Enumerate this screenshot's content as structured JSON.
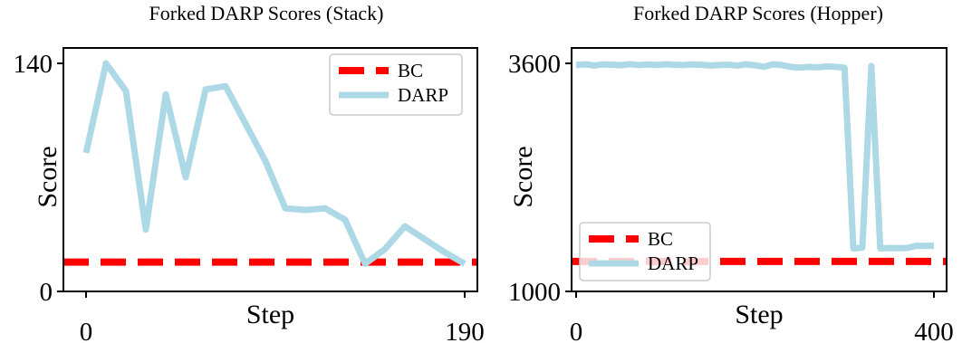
{
  "colors": {
    "bc": "#ff0000",
    "darp": "#add8e6"
  },
  "chart_data": [
    {
      "type": "line",
      "title": "Forked DARP Scores (Stack)",
      "xlabel": "Step",
      "ylabel": "Score",
      "xlim": [
        0,
        190
      ],
      "ylim": [
        0,
        140
      ],
      "xticks": [
        0,
        190
      ],
      "yticks": [
        0,
        140
      ],
      "legend": "top-right",
      "grid": false,
      "series": [
        {
          "name": "BC",
          "style": "dashed",
          "x": [
            0,
            190
          ],
          "y": [
            18,
            18
          ]
        },
        {
          "name": "DARP",
          "style": "solid",
          "x": [
            0,
            10,
            20,
            30,
            40,
            50,
            60,
            70,
            80,
            90,
            100,
            110,
            120,
            130,
            140,
            150,
            160,
            170,
            180,
            190
          ],
          "y": [
            85,
            140,
            123,
            38,
            121,
            70,
            124,
            126,
            103,
            80,
            51,
            50,
            51,
            44,
            17,
            26,
            40,
            32,
            24,
            17
          ]
        }
      ]
    },
    {
      "type": "line",
      "title": "Forked DARP Scores (Hopper)",
      "xlabel": "Step",
      "ylabel": "Score",
      "xlim": [
        0,
        400
      ],
      "ylim": [
        1000,
        3600
      ],
      "xticks": [
        0,
        400
      ],
      "yticks": [
        1000,
        3600
      ],
      "legend": "bottom-left",
      "grid": false,
      "series": [
        {
          "name": "BC",
          "style": "dashed",
          "x": [
            0,
            400
          ],
          "y": [
            1342,
            1342
          ]
        },
        {
          "name": "DARP",
          "style": "solid",
          "x": [
            0,
            10,
            20,
            30,
            40,
            50,
            60,
            70,
            80,
            90,
            100,
            110,
            120,
            130,
            140,
            150,
            160,
            170,
            180,
            190,
            200,
            210,
            220,
            230,
            240,
            250,
            260,
            270,
            280,
            290,
            300,
            310,
            320,
            330,
            340,
            350,
            360,
            370,
            380,
            390,
            400
          ],
          "y": [
            3580,
            3590,
            3575,
            3588,
            3585,
            3578,
            3592,
            3580,
            3587,
            3582,
            3590,
            3585,
            3580,
            3588,
            3583,
            3575,
            3580,
            3585,
            3574,
            3590,
            3578,
            3560,
            3590,
            3580,
            3560,
            3550,
            3560,
            3555,
            3565,
            3560,
            3550,
            1490,
            1500,
            3570,
            1490,
            1495,
            1492,
            1495,
            1520,
            1520,
            1520
          ]
        }
      ]
    }
  ]
}
